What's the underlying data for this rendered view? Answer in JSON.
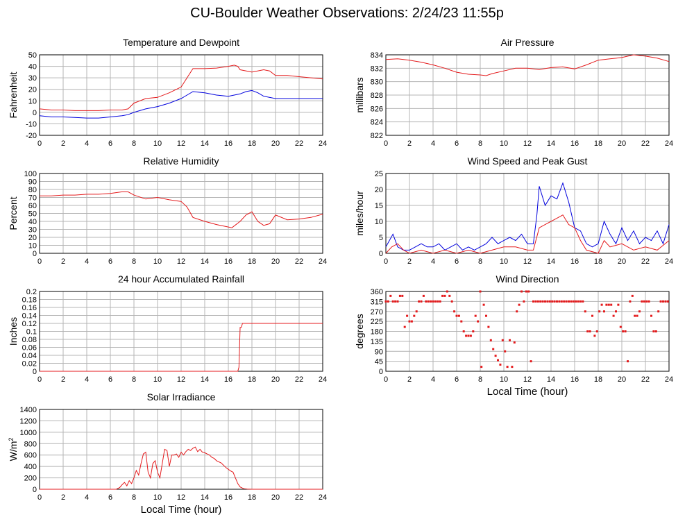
{
  "page": {
    "title": "CU-Boulder Weather Observations: 2/24/23 11:55p"
  },
  "colors": {
    "primary": "#e41a1c",
    "secondary": "#0000dd",
    "grid": "#b4b4b4"
  },
  "chart_data": [
    {
      "id": "temp",
      "type": "line",
      "title": "Temperature and Dewpoint",
      "ylabel": "Fahrenheit",
      "xlabel": "",
      "xlim": [
        0,
        24
      ],
      "ylim": [
        -20,
        50
      ],
      "xticks": [
        0,
        2,
        4,
        6,
        8,
        10,
        12,
        14,
        16,
        18,
        20,
        22,
        24
      ],
      "yticks": [
        -20,
        -10,
        0,
        10,
        20,
        30,
        40,
        50
      ],
      "series": [
        {
          "color": "#e41a1c",
          "x": [
            0,
            1,
            2,
            3,
            4,
            5,
            6,
            7,
            7.5,
            8,
            9,
            10,
            11,
            12,
            12.5,
            13,
            14,
            15,
            16,
            16.5,
            16.8,
            17,
            18,
            19,
            19.5,
            20,
            21,
            22,
            23,
            24
          ],
          "y": [
            3,
            2,
            2,
            1.5,
            1.5,
            1.5,
            2,
            2,
            3,
            8,
            12,
            13,
            17,
            22,
            30,
            38,
            38,
            38.5,
            40,
            41,
            40,
            37,
            35,
            37,
            36,
            32,
            32,
            31,
            30,
            29
          ]
        },
        {
          "color": "#0000dd",
          "x": [
            0,
            1,
            2,
            3,
            4,
            5,
            6,
            7,
            7.5,
            8,
            9,
            10,
            11,
            12,
            12.5,
            13,
            14,
            15,
            16,
            17,
            17.5,
            18,
            18.5,
            19,
            20,
            21,
            22,
            23,
            24
          ],
          "y": [
            -3,
            -4,
            -4,
            -4.5,
            -5,
            -5,
            -4,
            -3,
            -2,
            0,
            3,
            5,
            8,
            12,
            15,
            18,
            17,
            15,
            14,
            16,
            18,
            19,
            17,
            14,
            12,
            12,
            12,
            12,
            12
          ]
        }
      ]
    },
    {
      "id": "pres",
      "type": "line",
      "title": "Air Pressure",
      "ylabel": "millibars",
      "xlabel": "",
      "xlim": [
        0,
        24
      ],
      "ylim": [
        822,
        834
      ],
      "xticks": [
        0,
        2,
        4,
        6,
        8,
        10,
        12,
        14,
        16,
        18,
        20,
        22,
        24
      ],
      "yticks": [
        822,
        824,
        826,
        828,
        830,
        832,
        834
      ],
      "series": [
        {
          "color": "#e41a1c",
          "x": [
            0,
            1,
            2,
            3,
            4,
            5,
            6,
            7,
            8,
            8.5,
            9,
            10,
            11,
            12,
            13,
            14,
            15,
            16,
            17,
            18,
            19,
            20,
            21,
            22,
            23,
            24
          ],
          "y": [
            833.3,
            833.4,
            833.2,
            832.9,
            832.5,
            832,
            831.4,
            831.1,
            831,
            830.9,
            831.2,
            831.6,
            832,
            832,
            831.8,
            832.1,
            832.2,
            831.9,
            832.5,
            833.2,
            833.4,
            833.6,
            834,
            833.8,
            833.5,
            833
          ]
        }
      ]
    },
    {
      "id": "rh",
      "type": "line",
      "title": "Relative Humidity",
      "ylabel": "Percent",
      "xlabel": "",
      "xlim": [
        0,
        24
      ],
      "ylim": [
        0,
        100
      ],
      "xticks": [
        0,
        2,
        4,
        6,
        8,
        10,
        12,
        14,
        16,
        18,
        20,
        22,
        24
      ],
      "yticks": [
        0,
        10,
        20,
        30,
        40,
        50,
        60,
        70,
        80,
        90,
        100
      ],
      "series": [
        {
          "color": "#e41a1c",
          "x": [
            0,
            1,
            2,
            3,
            4,
            5,
            6,
            7,
            7.5,
            8,
            9,
            10,
            11,
            12,
            12.5,
            13,
            14,
            15,
            16,
            16.3,
            17,
            17.5,
            18,
            18.5,
            19,
            19.5,
            20,
            21,
            22,
            23,
            24
          ],
          "y": [
            72,
            72,
            73,
            73,
            74,
            74,
            75,
            77,
            77,
            73,
            68,
            70,
            67,
            65,
            58,
            45,
            40,
            36,
            33,
            32,
            40,
            48,
            52,
            40,
            35,
            37,
            48,
            42,
            43,
            45,
            49
          ]
        }
      ]
    },
    {
      "id": "wind",
      "type": "line",
      "title": "Wind Speed and Peak Gust",
      "ylabel": "miles/hour",
      "xlabel": "",
      "xlim": [
        0,
        24
      ],
      "ylim": [
        0,
        25
      ],
      "xticks": [
        0,
        2,
        4,
        6,
        8,
        10,
        12,
        14,
        16,
        18,
        20,
        22,
        24
      ],
      "yticks": [
        0,
        5,
        10,
        15,
        20,
        25
      ],
      "series": [
        {
          "color": "#0000dd",
          "x": [
            0,
            0.3,
            0.6,
            1,
            1.5,
            2,
            2.5,
            3,
            3.5,
            4,
            4.5,
            5,
            5.5,
            6,
            6.5,
            7,
            7.5,
            8,
            8.5,
            9,
            9.5,
            10,
            10.5,
            11,
            11.5,
            12,
            12.5,
            12.8,
            13,
            13.5,
            14,
            14.5,
            15,
            15.5,
            16,
            16.5,
            17,
            17.5,
            18,
            18.5,
            19,
            19.5,
            20,
            20.5,
            21,
            21.5,
            22,
            22.5,
            23,
            23.5,
            24
          ],
          "y": [
            2,
            4,
            6,
            2,
            1,
            1,
            2,
            3,
            2,
            2,
            3,
            1,
            2,
            3,
            1,
            2,
            1,
            2,
            3,
            5,
            3,
            4,
            5,
            4,
            6,
            3,
            3,
            12,
            21,
            15,
            18,
            17,
            22,
            16,
            8,
            7,
            3,
            2,
            3,
            10,
            6,
            3,
            8,
            4,
            7,
            3,
            5,
            4,
            7,
            3,
            9
          ]
        },
        {
          "color": "#e41a1c",
          "x": [
            0,
            0.5,
            1,
            1.5,
            2,
            3,
            4,
            5,
            6,
            7,
            8,
            9,
            10,
            11,
            12,
            12.5,
            13,
            13.5,
            14,
            14.5,
            15,
            15.5,
            16,
            16.5,
            17,
            18,
            18.5,
            19,
            20,
            21,
            22,
            23,
            24
          ],
          "y": [
            0,
            2,
            3,
            1,
            0,
            1,
            0,
            1,
            0,
            1,
            0,
            1,
            2,
            2,
            1,
            1,
            8,
            9,
            10,
            11,
            12,
            9,
            8,
            4,
            1,
            0,
            4,
            2,
            3,
            1,
            2,
            1,
            4
          ]
        }
      ]
    },
    {
      "id": "rain",
      "type": "line",
      "title": "24 hour Accumulated Rainfall",
      "ylabel": "Inches",
      "xlabel": "",
      "xlim": [
        0,
        24
      ],
      "ylim": [
        0,
        0.2
      ],
      "xticks": [
        0,
        2,
        4,
        6,
        8,
        10,
        12,
        14,
        16,
        18,
        20,
        22,
        24
      ],
      "yticks": [
        0,
        0.02,
        0.04,
        0.06,
        0.08,
        0.1,
        0.12,
        0.14,
        0.16,
        0.18,
        0.2
      ],
      "series": [
        {
          "color": "#e41a1c",
          "x": [
            0,
            16.8,
            16.9,
            17,
            17.1,
            17.2,
            24
          ],
          "y": [
            0,
            0,
            0.01,
            0.11,
            0.11,
            0.12,
            0.12
          ]
        }
      ]
    },
    {
      "id": "wdir",
      "type": "scatter",
      "title": "Wind Direction",
      "ylabel": "degrees",
      "xlabel": "Local Time (hour)",
      "xlim": [
        0,
        24
      ],
      "ylim": [
        0,
        360
      ],
      "xticks": [
        0,
        2,
        4,
        6,
        8,
        10,
        12,
        14,
        16,
        18,
        20,
        22,
        24
      ],
      "yticks": [
        0,
        45,
        90,
        135,
        180,
        225,
        270,
        315,
        360
      ],
      "series": [
        {
          "color": "#e41a1c",
          "x": [
            0,
            0.2,
            0.4,
            0.6,
            0.8,
            1,
            1.2,
            1.4,
            1.6,
            1.8,
            2,
            2.2,
            2.4,
            2.6,
            2.8,
            3,
            3.2,
            3.4,
            3.6,
            3.8,
            4,
            4.2,
            4.4,
            4.6,
            4.8,
            5,
            5.2,
            5.4,
            5.6,
            5.8,
            6,
            6.2,
            6.4,
            6.6,
            6.8,
            7,
            7.2,
            7.4,
            7.6,
            7.8,
            8,
            8.1,
            8.3,
            8.5,
            8.7,
            8.9,
            9.1,
            9.3,
            9.5,
            9.7,
            9.9,
            10.1,
            10.3,
            10.5,
            10.7,
            10.9,
            11.1,
            11.3,
            11.5,
            11.7,
            11.9,
            12.1,
            12.3,
            12.5,
            12.7,
            12.9,
            13.1,
            13.3,
            13.5,
            13.7,
            13.9,
            14.1,
            14.3,
            14.5,
            14.7,
            14.9,
            15.1,
            15.3,
            15.5,
            15.7,
            15.9,
            16.1,
            16.3,
            16.5,
            16.7,
            16.9,
            17.1,
            17.3,
            17.5,
            17.7,
            17.9,
            18.1,
            18.3,
            18.5,
            18.7,
            18.9,
            19.1,
            19.3,
            19.5,
            19.7,
            19.9,
            20.1,
            20.3,
            20.5,
            20.7,
            20.9,
            21.1,
            21.3,
            21.5,
            21.7,
            21.9,
            22.1,
            22.3,
            22.5,
            22.7,
            22.9,
            23.1,
            23.3,
            23.5,
            23.7,
            23.9
          ],
          "y": [
            315,
            315,
            340,
            315,
            315,
            315,
            340,
            340,
            200,
            250,
            225,
            225,
            250,
            270,
            315,
            315,
            340,
            315,
            315,
            315,
            315,
            315,
            315,
            315,
            340,
            340,
            360,
            340,
            315,
            270,
            250,
            250,
            225,
            180,
            160,
            160,
            160,
            180,
            250,
            225,
            360,
            20,
            300,
            250,
            200,
            140,
            100,
            70,
            50,
            30,
            140,
            90,
            20,
            140,
            20,
            130,
            270,
            300,
            360,
            315,
            360,
            360,
            45,
            315,
            315,
            315,
            315,
            315,
            315,
            315,
            315,
            315,
            315,
            315,
            315,
            315,
            315,
            315,
            315,
            315,
            315,
            315,
            315,
            315,
            315,
            270,
            180,
            180,
            250,
            160,
            180,
            270,
            300,
            270,
            300,
            300,
            300,
            250,
            270,
            300,
            200,
            180,
            180,
            45,
            315,
            340,
            250,
            250,
            270,
            315,
            315,
            315,
            315,
            250,
            180,
            180,
            270,
            315,
            315,
            315,
            315
          ]
        }
      ]
    },
    {
      "id": "solar",
      "type": "line",
      "title": "Solar Irradiance",
      "ylabel": "W/m2",
      "xlabel": "Local Time (hour)",
      "xlim": [
        0,
        24
      ],
      "ylim": [
        0,
        1400
      ],
      "xticks": [
        0,
        2,
        4,
        6,
        8,
        10,
        12,
        14,
        16,
        18,
        20,
        22,
        24
      ],
      "yticks": [
        0,
        200,
        400,
        600,
        800,
        1000,
        1200,
        1400
      ],
      "series": [
        {
          "color": "#e41a1c",
          "x": [
            0,
            6.5,
            6.8,
            7,
            7.2,
            7.4,
            7.6,
            7.8,
            8,
            8.2,
            8.4,
            8.6,
            8.8,
            9,
            9.2,
            9.4,
            9.6,
            9.8,
            10,
            10.2,
            10.4,
            10.6,
            10.8,
            11,
            11.2,
            11.4,
            11.6,
            11.8,
            12,
            12.2,
            12.4,
            12.6,
            12.8,
            13,
            13.2,
            13.4,
            13.6,
            13.8,
            14,
            14.2,
            14.4,
            14.6,
            14.8,
            15,
            15.2,
            15.4,
            15.6,
            15.8,
            16,
            16.2,
            16.4,
            16.6,
            16.8,
            17,
            17.3,
            17.6,
            18,
            24
          ],
          "y": [
            0,
            0,
            30,
            80,
            120,
            60,
            150,
            100,
            200,
            330,
            250,
            450,
            620,
            650,
            300,
            200,
            450,
            500,
            300,
            200,
            450,
            700,
            680,
            400,
            600,
            600,
            620,
            560,
            650,
            600,
            660,
            700,
            680,
            720,
            740,
            660,
            700,
            650,
            640,
            620,
            600,
            560,
            540,
            500,
            480,
            460,
            420,
            380,
            350,
            320,
            300,
            200,
            100,
            40,
            10,
            3,
            0,
            0
          ]
        }
      ]
    }
  ]
}
